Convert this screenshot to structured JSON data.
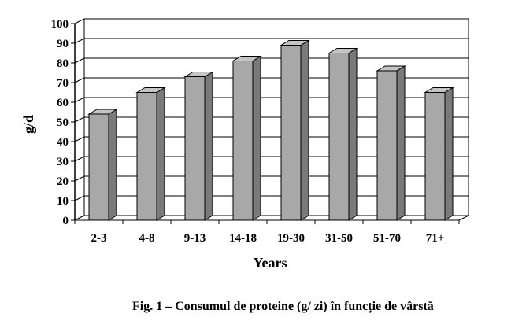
{
  "chart_data": {
    "type": "bar",
    "categories": [
      "2-3",
      "4-8",
      "9-13",
      "14-18",
      "19-30",
      "31-50",
      "51-70",
      "71+"
    ],
    "values": [
      54,
      65,
      73,
      81,
      89,
      85,
      76,
      65
    ],
    "xlabel": "Years",
    "ylabel": "g/d",
    "ylim": [
      0,
      100
    ],
    "yticks": [
      0,
      10,
      20,
      30,
      40,
      50,
      60,
      70,
      80,
      90,
      100
    ],
    "grid": true,
    "style": "3d-bar",
    "bar_color": "#a8a8a8"
  },
  "caption": "Fig. 1 – Consumul de proteine (g/ zi) în funcție de vârstă"
}
